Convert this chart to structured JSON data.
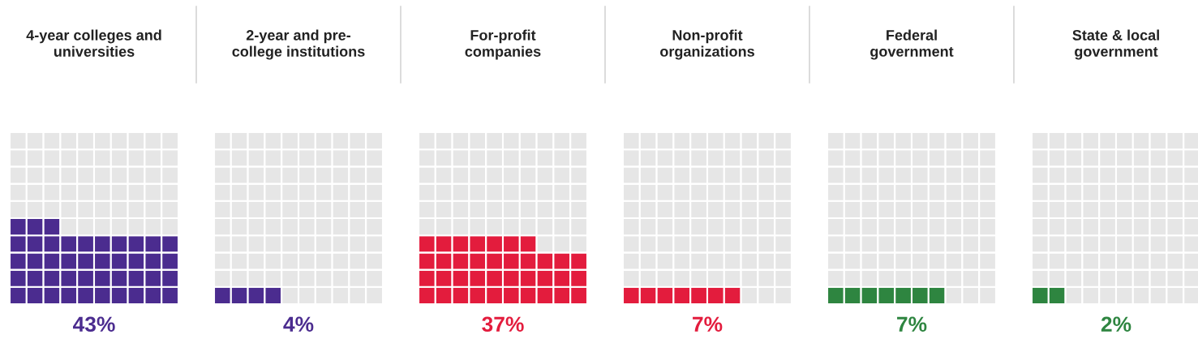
{
  "chart_data": {
    "type": "other",
    "categories": [
      "4-year colleges and\nuniversities",
      "2-year and pre-\ncollege institutions",
      "For-profit\ncompanies",
      "Non-profit\norganizations",
      "Federal\ngovernment",
      "State & local\ngovernment"
    ],
    "values": [
      43,
      4,
      37,
      7,
      7,
      2
    ],
    "value_labels": [
      "43%",
      "4%",
      "37%",
      "7%",
      "7%",
      "2%"
    ],
    "colors": [
      "#4b2c8f",
      "#4b2c8f",
      "#e31c3d",
      "#e31c3d",
      "#2e8540",
      "#2e8540"
    ]
  }
}
